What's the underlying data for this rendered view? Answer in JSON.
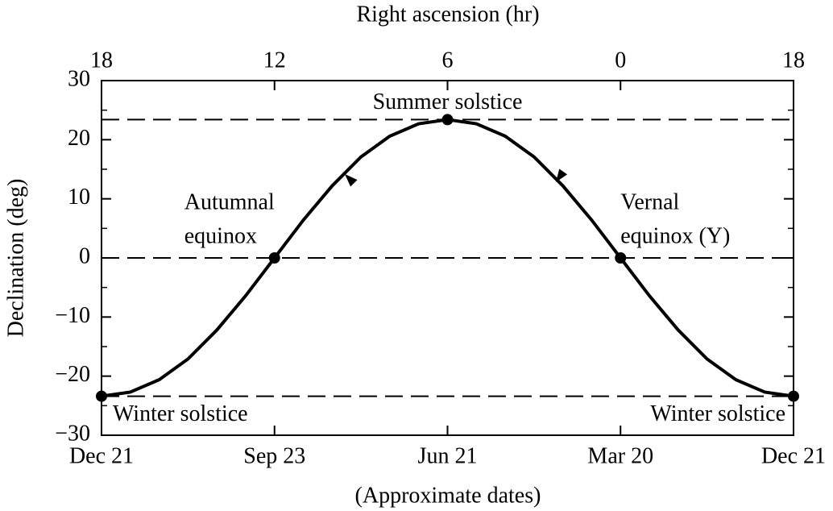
{
  "chart_data": {
    "type": "line",
    "title": "Right ascension (hr)",
    "xlabel": "(Approximate dates)",
    "ylabel": "Declination (deg)",
    "xlim": [
      18,
      -6
    ],
    "xticks": [
      18,
      12,
      6,
      0,
      {
        "value": -6,
        "label": "18"
      }
    ],
    "date_labels": [
      "Dec 21",
      "Sep 23",
      "Jun 21",
      "Mar 20",
      "Dec 21"
    ],
    "ylim": [
      -30,
      30
    ],
    "yticks": [
      {
        "value": -30,
        "label": "−30"
      },
      {
        "value": -20,
        "label": "−20"
      },
      {
        "value": -10,
        "label": "−10"
      },
      0,
      10,
      20,
      30
    ],
    "hlines": [
      23.4,
      0,
      -23.4
    ],
    "color": "#000000",
    "x": [
      18,
      17,
      16,
      15,
      14,
      13,
      12,
      11,
      10,
      9,
      8,
      7,
      6,
      5,
      4,
      3,
      2,
      1,
      0,
      -1,
      -2,
      -3,
      -4,
      -5,
      -6
    ],
    "values": [
      -23.4,
      -22.7,
      -20.6,
      -17.1,
      -12.2,
      -6.4,
      0,
      6.4,
      12.2,
      17.1,
      20.6,
      22.7,
      23.4,
      22.7,
      20.6,
      17.1,
      12.2,
      6.4,
      0,
      -6.4,
      -12.2,
      -17.1,
      -20.6,
      -22.7,
      -23.4
    ],
    "points": [
      {
        "x": 18,
        "y": -23.4,
        "label": [
          "Winter solstice"
        ]
      },
      {
        "x": 12,
        "y": 0,
        "label": [
          "Autumnal",
          "equinox"
        ]
      },
      {
        "x": 6,
        "y": 23.4,
        "label": [
          "Summer solstice"
        ]
      },
      {
        "x": 0,
        "y": 0,
        "label": [
          "Vernal",
          "equinox (Υ)"
        ]
      },
      {
        "x": -6,
        "y": -23.4,
        "label": [
          "Winter solstice"
        ]
      }
    ]
  }
}
